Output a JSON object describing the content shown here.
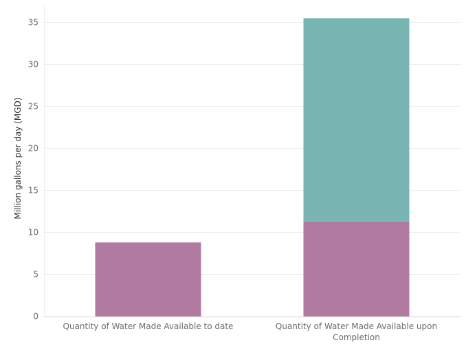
{
  "chart_data": {
    "type": "bar",
    "stacked": true,
    "ylabel": "Million gallons per day (MGD)",
    "xlabel": "",
    "ylim": [
      0,
      36
    ],
    "yticks": [
      0,
      5,
      10,
      15,
      20,
      25,
      30,
      35
    ],
    "grid": true,
    "legend": "none",
    "categories": [
      "Quantity of Water Made Available to date",
      "Quantity of Water Made Available upon Completion"
    ],
    "category_lines": [
      [
        "Quantity of Water Made Available to date"
      ],
      [
        "Quantity of Water Made Available upon",
        "Completion"
      ]
    ],
    "series": [
      {
        "values": [
          8.8,
          11.3
        ],
        "color": "#b07aa1"
      },
      {
        "values": [
          0,
          24.2
        ],
        "color": "#79b6b3"
      }
    ]
  }
}
